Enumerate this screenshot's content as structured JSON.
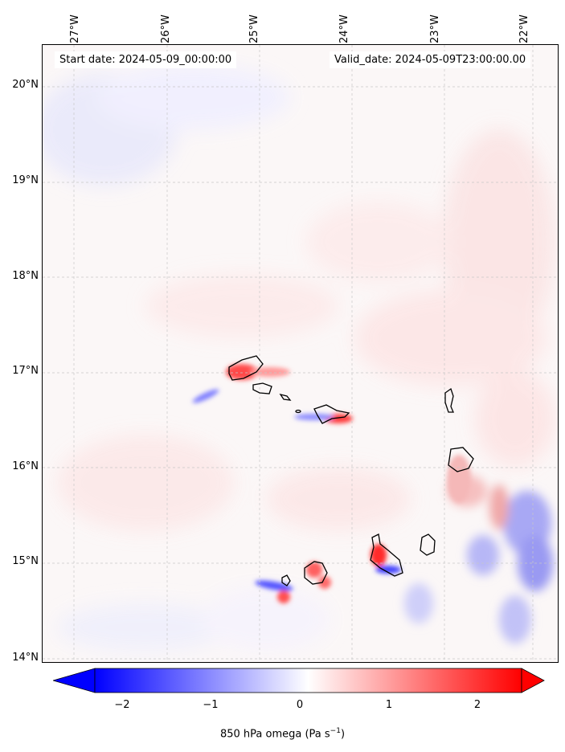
{
  "map": {
    "start_date": "Start date: 2024-05-09_00:00:00",
    "valid_date": "Valid_date: 2024-05-09T23:00:00.00",
    "longitude_labels": [
      "27°W",
      "26°W",
      "25°W",
      "24°W",
      "23°W",
      "22°W"
    ],
    "latitude_labels": [
      "20°N",
      "19°N",
      "18°N",
      "17°N",
      "16°N",
      "15°N",
      "14°N"
    ],
    "lon_range": [
      -27.35,
      -21.8
    ],
    "lat_range": [
      13.95,
      20.45
    ],
    "gridlines": true,
    "islands": [
      "Santo Antão",
      "São Vicente",
      "Santa Luzia",
      "São Nicolau",
      "Sal",
      "Boa Vista",
      "Maio",
      "Santiago",
      "Fogo",
      "Brava"
    ],
    "colormap": "bwr",
    "colors": {
      "negative": "#0000ff",
      "neutral": "#ffffff",
      "positive": "#ff0000"
    }
  },
  "colorbar": {
    "ticks": [
      "−2",
      "−1",
      "0",
      "1",
      "2"
    ],
    "tick_values": [
      -2,
      -1,
      0,
      1,
      2
    ],
    "range": [
      -2.5,
      2.5
    ],
    "extend": "both",
    "label_main": "850 hPa omega (Pa s",
    "label_exp": "−1",
    "label_close": ")"
  }
}
